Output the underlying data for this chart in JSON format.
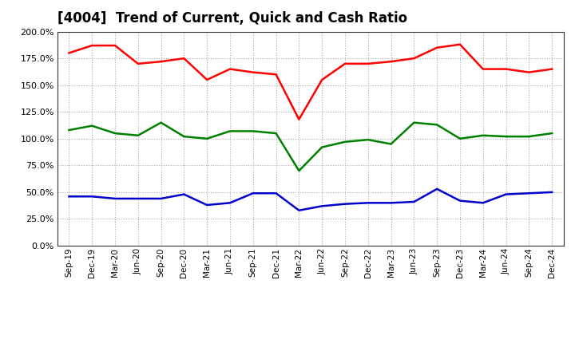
{
  "title": "[4004]  Trend of Current, Quick and Cash Ratio",
  "x_labels": [
    "Sep-19",
    "Dec-19",
    "Mar-20",
    "Jun-20",
    "Sep-20",
    "Dec-20",
    "Mar-21",
    "Jun-21",
    "Sep-21",
    "Dec-21",
    "Mar-22",
    "Jun-22",
    "Sep-22",
    "Dec-22",
    "Mar-23",
    "Jun-23",
    "Sep-23",
    "Dec-23",
    "Mar-24",
    "Jun-24",
    "Sep-24",
    "Dec-24"
  ],
  "current_ratio": [
    1.8,
    1.87,
    1.87,
    1.7,
    1.72,
    1.75,
    1.55,
    1.65,
    1.62,
    1.6,
    1.18,
    1.55,
    1.7,
    1.7,
    1.72,
    1.75,
    1.85,
    1.88,
    1.65,
    1.65,
    1.62,
    1.65
  ],
  "quick_ratio": [
    1.08,
    1.12,
    1.05,
    1.03,
    1.15,
    1.02,
    1.0,
    1.07,
    1.07,
    1.05,
    0.7,
    0.92,
    0.97,
    0.99,
    0.95,
    1.15,
    1.13,
    1.0,
    1.03,
    1.02,
    1.02,
    1.05
  ],
  "cash_ratio": [
    0.46,
    0.46,
    0.44,
    0.44,
    0.44,
    0.48,
    0.38,
    0.4,
    0.49,
    0.49,
    0.33,
    0.37,
    0.39,
    0.4,
    0.4,
    0.41,
    0.53,
    0.42,
    0.4,
    0.48,
    0.49,
    0.5
  ],
  "current_color": "#FF0000",
  "quick_color": "#008000",
  "cash_color": "#0000CD",
  "bg_color": "#FFFFFF",
  "plot_bg_color": "#FFFFFF",
  "grid_color": "#AAAAAA",
  "ylim": [
    0.0,
    2.0
  ],
  "yticks": [
    0.0,
    0.25,
    0.5,
    0.75,
    1.0,
    1.25,
    1.5,
    1.75,
    2.0
  ],
  "title_fontsize": 12,
  "line_width": 1.8,
  "legend_fontsize": 9
}
